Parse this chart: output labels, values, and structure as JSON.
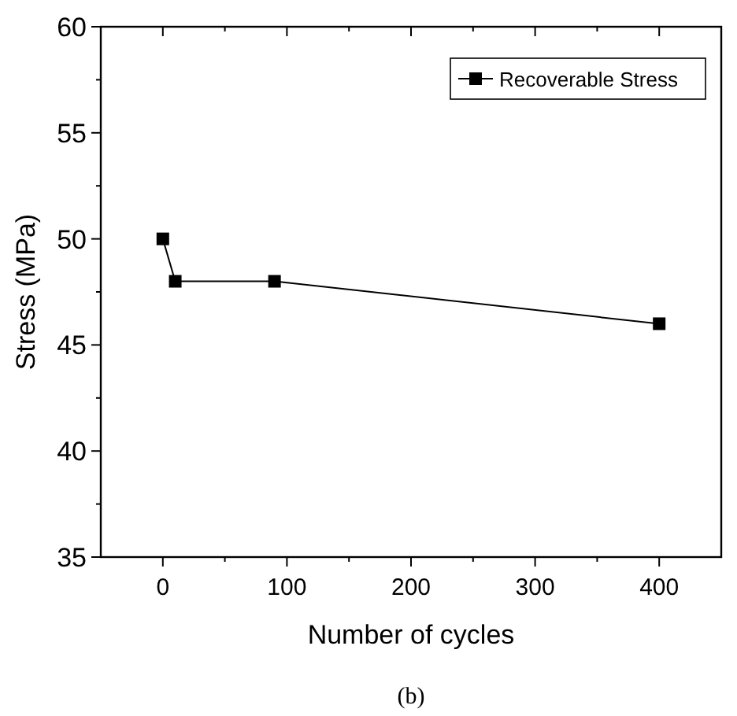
{
  "chart_data": {
    "type": "line",
    "xlabel": "Number of cycles",
    "ylabel": "Stress (MPa)",
    "annotations": [
      "(b)"
    ],
    "x": [
      0,
      10,
      90,
      400
    ],
    "series": [
      {
        "name": "Recoverable Stress",
        "color": "#000000",
        "values": [
          50,
          48,
          48,
          46
        ]
      }
    ],
    "xlim": [
      -50,
      450
    ],
    "xticks": [
      0,
      100,
      200,
      300,
      400
    ],
    "ylim": [
      35,
      60
    ],
    "yticks": [
      35,
      40,
      45,
      50,
      55,
      60
    ],
    "grid": false,
    "legend": "top right",
    "marker": "square",
    "line_style": "solid"
  }
}
